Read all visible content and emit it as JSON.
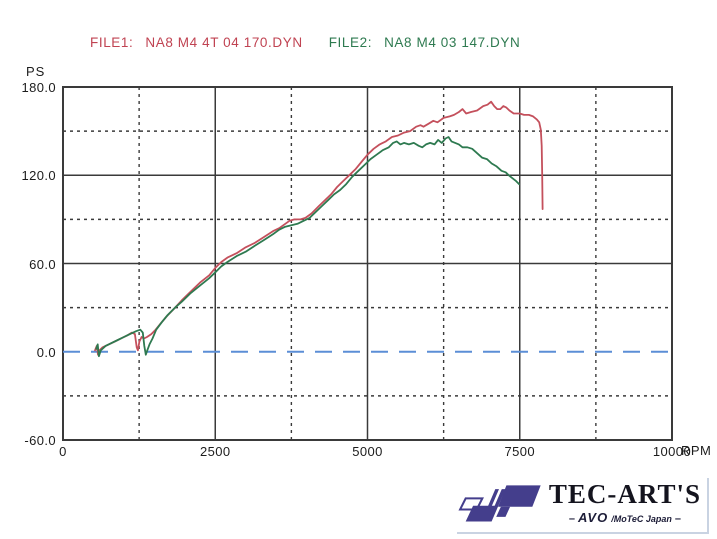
{
  "header": {
    "file1_label": "FILE1:",
    "file1_value": "NA8 M4  4T 04 170.DYN",
    "file2_label": "FILE2:",
    "file2_value": "NA8 M4 03 147.DYN",
    "file1_color": "#c04352",
    "file2_color": "#2e7a50"
  },
  "chart_data": {
    "type": "line",
    "title": "",
    "xlabel": "RPM",
    "ylabel": "PS",
    "xlim": [
      0,
      10000
    ],
    "ylim": [
      -60,
      180
    ],
    "grid": {
      "color": "#3a3a3a",
      "x_solid": [
        2500,
        5000,
        7500
      ],
      "x_dashed": [
        1250,
        3750,
        6250,
        8750
      ],
      "y_solid": [
        120,
        60
      ],
      "y_dashed": [
        150,
        90,
        30,
        -30
      ]
    },
    "x_ticks": [
      {
        "v": 0,
        "label": "0"
      },
      {
        "v": 2500,
        "label": "2500"
      },
      {
        "v": 5000,
        "label": "5000"
      },
      {
        "v": 7500,
        "label": "7500"
      },
      {
        "v": 10000,
        "label": "10000"
      }
    ],
    "y_ticks": [
      {
        "v": 180,
        "label": "180.0"
      },
      {
        "v": 120,
        "label": "120.0"
      },
      {
        "v": 60,
        "label": "60.0"
      },
      {
        "v": 0,
        "label": "0.0"
      },
      {
        "v": -60,
        "label": "-60.0"
      }
    ],
    "zero_line": {
      "ps": 0,
      "color": "#5b8ed6",
      "style": "dashed"
    },
    "legend_position": "top",
    "series": [
      {
        "name": "NA8 M4 4T 04 170.DYN",
        "color": "#c4505c",
        "points": [
          [
            525,
            1
          ],
          [
            555,
            4
          ],
          [
            575,
            -2
          ],
          [
            600,
            1
          ],
          [
            650,
            3
          ],
          [
            750,
            5
          ],
          [
            850,
            7
          ],
          [
            950,
            9
          ],
          [
            1050,
            11
          ],
          [
            1130,
            13
          ],
          [
            1180,
            12
          ],
          [
            1210,
            3
          ],
          [
            1230,
            1
          ],
          [
            1255,
            7
          ],
          [
            1290,
            10
          ],
          [
            1330,
            9
          ],
          [
            1380,
            10
          ],
          [
            1450,
            12
          ],
          [
            1520,
            15
          ],
          [
            1600,
            19
          ],
          [
            1700,
            24
          ],
          [
            1840,
            30
          ],
          [
            1950,
            35
          ],
          [
            2100,
            41
          ],
          [
            2250,
            47
          ],
          [
            2400,
            52
          ],
          [
            2500,
            57
          ],
          [
            2600,
            61
          ],
          [
            2700,
            64
          ],
          [
            2850,
            67
          ],
          [
            3000,
            71
          ],
          [
            3150,
            74
          ],
          [
            3300,
            78
          ],
          [
            3450,
            82
          ],
          [
            3550,
            84
          ],
          [
            3650,
            87
          ],
          [
            3720,
            89
          ],
          [
            3800,
            90
          ],
          [
            3900,
            90
          ],
          [
            3980,
            91
          ],
          [
            4080,
            94
          ],
          [
            4200,
            99
          ],
          [
            4300,
            103
          ],
          [
            4400,
            107
          ],
          [
            4500,
            112
          ],
          [
            4600,
            116
          ],
          [
            4700,
            120
          ],
          [
            4800,
            124
          ],
          [
            4900,
            129
          ],
          [
            5000,
            134
          ],
          [
            5100,
            138
          ],
          [
            5200,
            141
          ],
          [
            5300,
            143
          ],
          [
            5400,
            146
          ],
          [
            5500,
            147
          ],
          [
            5600,
            149
          ],
          [
            5700,
            150
          ],
          [
            5800,
            153
          ],
          [
            5870,
            154
          ],
          [
            5920,
            153
          ],
          [
            6000,
            155
          ],
          [
            6080,
            157
          ],
          [
            6150,
            156
          ],
          [
            6250,
            159
          ],
          [
            6350,
            160
          ],
          [
            6420,
            161
          ],
          [
            6500,
            163
          ],
          [
            6560,
            165
          ],
          [
            6620,
            162
          ],
          [
            6700,
            163
          ],
          [
            6800,
            164
          ],
          [
            6900,
            167
          ],
          [
            6970,
            168
          ],
          [
            7030,
            170
          ],
          [
            7080,
            167
          ],
          [
            7130,
            165
          ],
          [
            7180,
            165
          ],
          [
            7230,
            167
          ],
          [
            7280,
            166
          ],
          [
            7330,
            164
          ],
          [
            7400,
            162
          ],
          [
            7500,
            162
          ],
          [
            7570,
            161
          ],
          [
            7650,
            161
          ],
          [
            7720,
            160
          ],
          [
            7780,
            158
          ],
          [
            7820,
            156
          ],
          [
            7845,
            151
          ],
          [
            7860,
            140
          ],
          [
            7868,
            120
          ],
          [
            7875,
            97
          ]
        ]
      },
      {
        "name": "NA8 M4 03 147.DYN",
        "color": "#2e7a50",
        "points": [
          [
            545,
            2
          ],
          [
            570,
            5
          ],
          [
            590,
            -3
          ],
          [
            620,
            1
          ],
          [
            700,
            4
          ],
          [
            800,
            6
          ],
          [
            900,
            8
          ],
          [
            1000,
            10
          ],
          [
            1100,
            12
          ],
          [
            1200,
            14
          ],
          [
            1270,
            15
          ],
          [
            1310,
            13
          ],
          [
            1335,
            4
          ],
          [
            1360,
            -2
          ],
          [
            1385,
            1
          ],
          [
            1420,
            5
          ],
          [
            1470,
            9
          ],
          [
            1530,
            15
          ],
          [
            1620,
            20
          ],
          [
            1720,
            25
          ],
          [
            1840,
            30
          ],
          [
            1950,
            34
          ],
          [
            2100,
            40
          ],
          [
            2250,
            45
          ],
          [
            2400,
            50
          ],
          [
            2500,
            54
          ],
          [
            2600,
            58
          ],
          [
            2700,
            61
          ],
          [
            2850,
            65
          ],
          [
            3000,
            68
          ],
          [
            3150,
            72
          ],
          [
            3300,
            76
          ],
          [
            3450,
            80
          ],
          [
            3550,
            83
          ],
          [
            3650,
            85
          ],
          [
            3750,
            86
          ],
          [
            3850,
            87
          ],
          [
            3950,
            89
          ],
          [
            4050,
            91
          ],
          [
            4150,
            95
          ],
          [
            4250,
            99
          ],
          [
            4350,
            103
          ],
          [
            4450,
            107
          ],
          [
            4550,
            110
          ],
          [
            4650,
            114
          ],
          [
            4750,
            119
          ],
          [
            4850,
            123
          ],
          [
            4950,
            127
          ],
          [
            5050,
            131
          ],
          [
            5150,
            134
          ],
          [
            5250,
            137
          ],
          [
            5350,
            139
          ],
          [
            5420,
            142
          ],
          [
            5480,
            143
          ],
          [
            5540,
            141
          ],
          [
            5600,
            142
          ],
          [
            5680,
            141
          ],
          [
            5760,
            142
          ],
          [
            5840,
            140
          ],
          [
            5900,
            139
          ],
          [
            5960,
            141
          ],
          [
            6030,
            142
          ],
          [
            6100,
            141
          ],
          [
            6160,
            144
          ],
          [
            6220,
            142
          ],
          [
            6280,
            145
          ],
          [
            6330,
            146
          ],
          [
            6380,
            143
          ],
          [
            6440,
            142
          ],
          [
            6500,
            141
          ],
          [
            6560,
            139
          ],
          [
            6640,
            139
          ],
          [
            6720,
            138
          ],
          [
            6800,
            135
          ],
          [
            6880,
            132
          ],
          [
            6960,
            131
          ],
          [
            7040,
            128
          ],
          [
            7120,
            126
          ],
          [
            7200,
            123
          ],
          [
            7270,
            122
          ],
          [
            7320,
            120
          ],
          [
            7380,
            118
          ],
          [
            7440,
            116
          ],
          [
            7490,
            114
          ]
        ]
      }
    ]
  },
  "logo": {
    "brand": "TEC-ART'S",
    "dash_left": "–",
    "avo": "AVO",
    "motec": "/MoTeC Japan",
    "dash_right": "–",
    "mark_color": "#443e8c"
  }
}
